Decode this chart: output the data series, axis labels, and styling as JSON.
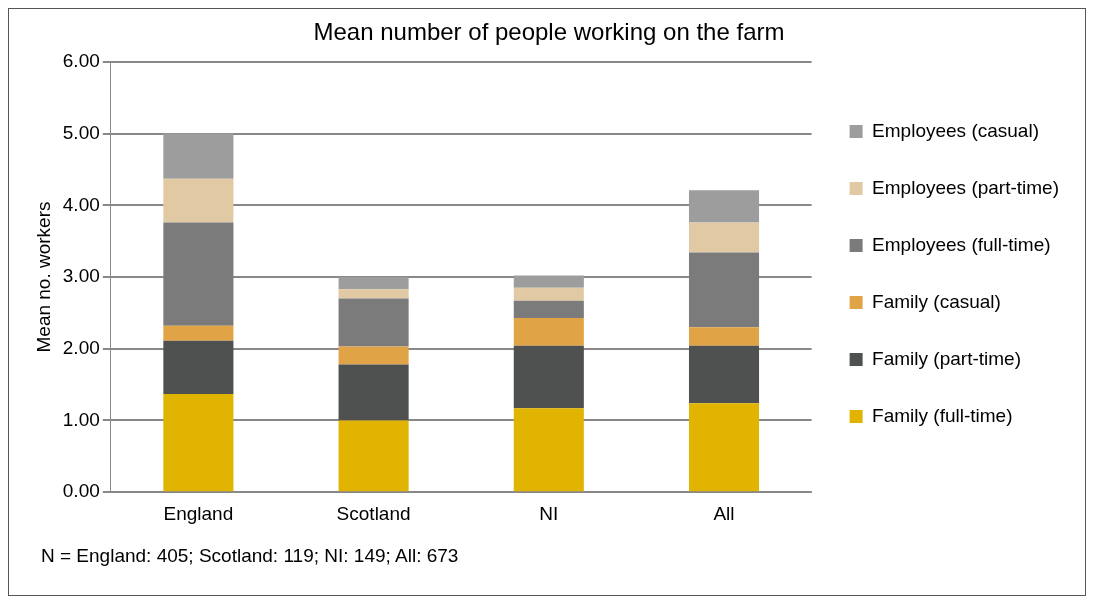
{
  "chart_data": {
    "type": "bar",
    "title": "Mean number of people working on the farm",
    "ylabel": "Mean no. workers",
    "categories": [
      "England",
      "Scotland",
      "NI",
      "All"
    ],
    "stacked": true,
    "legend": "right",
    "grid": "y",
    "ylim": [
      0,
      6
    ],
    "yticks": [
      {
        "value": 0,
        "label": "0.00"
      },
      {
        "value": 1,
        "label": "1.00"
      },
      {
        "value": 2,
        "label": "2.00"
      },
      {
        "value": 3,
        "label": "3.00"
      },
      {
        "value": 4,
        "label": "4.00"
      },
      {
        "value": 5,
        "label": "5.00"
      },
      {
        "value": 6,
        "label": "6.00"
      }
    ],
    "series": [
      {
        "name": "Family (full-time)",
        "color": "#e0b400",
        "values": [
          1.37,
          1.0,
          1.17,
          1.24
        ]
      },
      {
        "name": "Family (part-time)",
        "color": "#4f5050",
        "values": [
          0.74,
          0.78,
          0.87,
          0.8
        ]
      },
      {
        "name": "Family (casual)",
        "color": "#e0a345",
        "values": [
          0.21,
          0.25,
          0.39,
          0.26
        ]
      },
      {
        "name": "Employees (full-time)",
        "color": "#7b7b7c",
        "values": [
          1.44,
          0.67,
          0.24,
          1.04
        ]
      },
      {
        "name": "Employees (part-time)",
        "color": "#e0c9a3",
        "values": [
          0.61,
          0.13,
          0.18,
          0.42
        ]
      },
      {
        "name": "Employees (casual)",
        "color": "#9d9d9d",
        "values": [
          0.63,
          0.17,
          0.17,
          0.45
        ]
      }
    ],
    "annotations": [
      "N = England: 405; Scotland: 119; NI: 149; All: 673"
    ]
  }
}
